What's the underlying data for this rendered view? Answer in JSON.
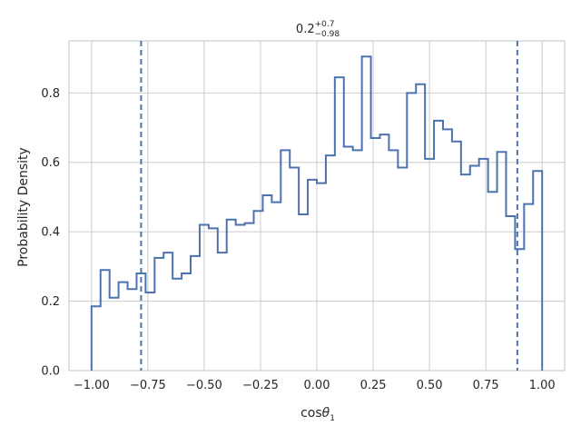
{
  "chart_data": {
    "type": "histogram-step",
    "title": {
      "base": "0.2",
      "sup": "+0.7",
      "sub": "−0.98"
    },
    "xlabel": {
      "prefix": "cos",
      "symbol": "θ",
      "sub": "1"
    },
    "ylabel": "Probability Density",
    "xlim": [
      -1.1,
      1.1
    ],
    "ylim": [
      0.0,
      0.95
    ],
    "xticks": [
      -1.0,
      -0.75,
      -0.5,
      -0.25,
      0.0,
      0.25,
      0.5,
      0.75,
      1.0
    ],
    "xtick_labels": [
      "−1.00",
      "−0.75",
      "−0.50",
      "−0.25",
      "0.00",
      "0.25",
      "0.50",
      "0.75",
      "1.00"
    ],
    "yticks": [
      0.0,
      0.2,
      0.4,
      0.6,
      0.8
    ],
    "ytick_labels": [
      "0.0",
      "0.2",
      "0.4",
      "0.6",
      "0.8"
    ],
    "grid": true,
    "bin_edges": [
      -1.0,
      -0.96,
      -0.92,
      -0.88,
      -0.84,
      -0.8,
      -0.76,
      -0.72,
      -0.68,
      -0.64,
      -0.6,
      -0.56,
      -0.52,
      -0.48,
      -0.44,
      -0.4,
      -0.36,
      -0.32,
      -0.28,
      -0.24,
      -0.2,
      -0.16,
      -0.12,
      -0.08,
      -0.04,
      0.0,
      0.04,
      0.08,
      0.12,
      0.16,
      0.2,
      0.24,
      0.28,
      0.32,
      0.36,
      0.4,
      0.44,
      0.48,
      0.52,
      0.56,
      0.6,
      0.64,
      0.68,
      0.72,
      0.76,
      0.8,
      0.84,
      0.88,
      0.92,
      0.96,
      1.0
    ],
    "densities": [
      0.185,
      0.29,
      0.21,
      0.255,
      0.235,
      0.28,
      0.225,
      0.325,
      0.34,
      0.265,
      0.28,
      0.33,
      0.42,
      0.41,
      0.34,
      0.435,
      0.42,
      0.425,
      0.46,
      0.505,
      0.485,
      0.635,
      0.585,
      0.45,
      0.55,
      0.54,
      0.62,
      0.845,
      0.645,
      0.635,
      0.905,
      0.67,
      0.68,
      0.635,
      0.585,
      0.8,
      0.825,
      0.61,
      0.72,
      0.695,
      0.66,
      0.565,
      0.59,
      0.61,
      0.515,
      0.63,
      0.445,
      0.35,
      0.48,
      0.575
    ],
    "series_color": "#4c72b0",
    "vlines": [
      -0.78,
      0.89
    ],
    "vline_style": "dashed"
  }
}
